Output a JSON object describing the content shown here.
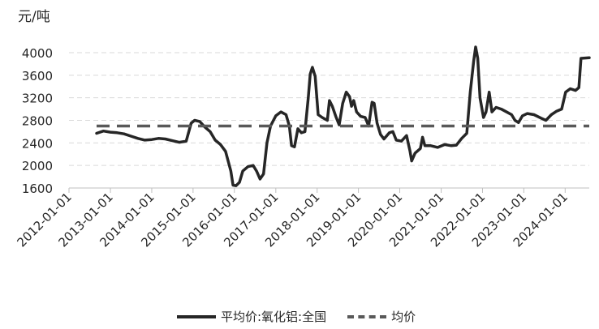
{
  "chart_data": {
    "type": "line",
    "title": "",
    "ylabel": "元/吨",
    "ylim": [
      1600,
      4000
    ],
    "yticks": [
      1600,
      2000,
      2400,
      2800,
      3200,
      3600,
      4000
    ],
    "xlim": [
      "2012-01-01",
      "2024-08-01"
    ],
    "xticks": [
      "2012-01-01",
      "2013-01-01",
      "2014-01-01",
      "2015-01-01",
      "2016-01-01",
      "2017-01-01",
      "2018-01-01",
      "2019-01-01",
      "2020-01-01",
      "2021-01-01",
      "2022-01-01",
      "2023-01-01",
      "2024-01-01"
    ],
    "grid": "horizontal dashed",
    "legend": "bottom",
    "series": [
      {
        "name": "平均价:氧化铝:全国",
        "color": "#262626",
        "style": "solid",
        "points": [
          [
            "2012-09-01",
            2570
          ],
          [
            "2012-11-01",
            2610
          ],
          [
            "2013-01-01",
            2590
          ],
          [
            "2013-03-01",
            2580
          ],
          [
            "2013-05-01",
            2560
          ],
          [
            "2013-07-01",
            2520
          ],
          [
            "2013-09-01",
            2480
          ],
          [
            "2013-11-01",
            2450
          ],
          [
            "2014-01-01",
            2460
          ],
          [
            "2014-03-01",
            2480
          ],
          [
            "2014-05-01",
            2470
          ],
          [
            "2014-07-01",
            2440
          ],
          [
            "2014-09-01",
            2410
          ],
          [
            "2014-11-01",
            2430
          ],
          [
            "2014-12-15",
            2750
          ],
          [
            "2015-01-15",
            2800
          ],
          [
            "2015-03-01",
            2780
          ],
          [
            "2015-04-15",
            2680
          ],
          [
            "2015-06-01",
            2600
          ],
          [
            "2015-07-15",
            2450
          ],
          [
            "2015-09-01",
            2370
          ],
          [
            "2015-10-15",
            2250
          ],
          [
            "2015-12-01",
            1900
          ],
          [
            "2015-12-20",
            1650
          ],
          [
            "2016-01-15",
            1640
          ],
          [
            "2016-02-15",
            1700
          ],
          [
            "2016-03-15",
            1900
          ],
          [
            "2016-05-01",
            1980
          ],
          [
            "2016-06-15",
            2000
          ],
          [
            "2016-07-15",
            1900
          ],
          [
            "2016-08-15",
            1760
          ],
          [
            "2016-09-15",
            1850
          ],
          [
            "2016-10-15",
            2400
          ],
          [
            "2016-11-15",
            2700
          ],
          [
            "2017-01-01",
            2880
          ],
          [
            "2017-02-15",
            2950
          ],
          [
            "2017-04-01",
            2900
          ],
          [
            "2017-05-01",
            2700
          ],
          [
            "2017-05-20",
            2350
          ],
          [
            "2017-06-15",
            2330
          ],
          [
            "2017-07-15",
            2650
          ],
          [
            "2017-08-15",
            2580
          ],
          [
            "2017-09-15",
            2600
          ],
          [
            "2017-10-15",
            3200
          ],
          [
            "2017-11-01",
            3620
          ],
          [
            "2017-11-20",
            3740
          ],
          [
            "2017-12-15",
            3580
          ],
          [
            "2018-01-10",
            2900
          ],
          [
            "2018-02-15",
            2850
          ],
          [
            "2018-04-01",
            2800
          ],
          [
            "2018-04-20",
            3150
          ],
          [
            "2018-05-15",
            3050
          ],
          [
            "2018-06-15",
            2870
          ],
          [
            "2018-07-15",
            2720
          ],
          [
            "2018-08-15",
            3100
          ],
          [
            "2018-09-15",
            3300
          ],
          [
            "2018-10-15",
            3220
          ],
          [
            "2018-11-01",
            3050
          ],
          [
            "2018-11-20",
            3150
          ],
          [
            "2018-12-15",
            2950
          ],
          [
            "2019-01-20",
            2870
          ],
          [
            "2019-03-01",
            2850
          ],
          [
            "2019-04-01",
            2700
          ],
          [
            "2019-05-01",
            3120
          ],
          [
            "2019-05-20",
            3100
          ],
          [
            "2019-06-15",
            2750
          ],
          [
            "2019-07-15",
            2550
          ],
          [
            "2019-08-15",
            2470
          ],
          [
            "2019-10-01",
            2580
          ],
          [
            "2019-11-01",
            2600
          ],
          [
            "2019-12-01",
            2450
          ],
          [
            "2020-01-15",
            2430
          ],
          [
            "2020-03-01",
            2530
          ],
          [
            "2020-04-01",
            2250
          ],
          [
            "2020-04-15",
            2080
          ],
          [
            "2020-05-15",
            2220
          ],
          [
            "2020-07-01",
            2300
          ],
          [
            "2020-07-20",
            2500
          ],
          [
            "2020-08-10",
            2350
          ],
          [
            "2020-10-01",
            2350
          ],
          [
            "2020-12-01",
            2320
          ],
          [
            "2021-02-01",
            2370
          ],
          [
            "2021-04-01",
            2350
          ],
          [
            "2021-05-15",
            2360
          ],
          [
            "2021-07-01",
            2480
          ],
          [
            "2021-08-15",
            2570
          ],
          [
            "2021-09-15",
            3300
          ],
          [
            "2021-10-15",
            3850
          ],
          [
            "2021-11-01",
            4100
          ],
          [
            "2021-11-20",
            3900
          ],
          [
            "2021-12-10",
            3200
          ],
          [
            "2022-01-10",
            2850
          ],
          [
            "2022-02-01",
            2950
          ],
          [
            "2022-03-01",
            3300
          ],
          [
            "2022-03-25",
            2950
          ],
          [
            "2022-05-01",
            3030
          ],
          [
            "2022-06-15",
            3000
          ],
          [
            "2022-08-01",
            2950
          ],
          [
            "2022-09-15",
            2900
          ],
          [
            "2022-10-15",
            2800
          ],
          [
            "2022-11-15",
            2760
          ],
          [
            "2022-12-20",
            2880
          ],
          [
            "2023-02-01",
            2920
          ],
          [
            "2023-04-01",
            2900
          ],
          [
            "2023-06-01",
            2840
          ],
          [
            "2023-07-15",
            2800
          ],
          [
            "2023-09-01",
            2900
          ],
          [
            "2023-10-15",
            2960
          ],
          [
            "2023-12-01",
            3000
          ],
          [
            "2024-01-05",
            3300
          ],
          [
            "2024-02-15",
            3360
          ],
          [
            "2024-04-01",
            3330
          ],
          [
            "2024-05-01",
            3380
          ],
          [
            "2024-05-20",
            3900
          ],
          [
            "2024-08-01",
            3910
          ]
        ]
      },
      {
        "name": "均价",
        "color": "#595959",
        "style": "dashed",
        "points": [
          [
            "2012-09-01",
            2700
          ],
          [
            "2024-08-01",
            2700
          ]
        ]
      }
    ]
  }
}
